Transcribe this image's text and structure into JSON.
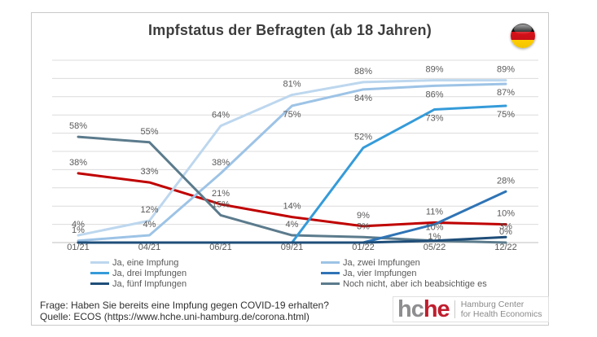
{
  "chart_data": {
    "type": "line",
    "title": "Impfstatus der Befragten (ab 18 Jahren)",
    "categories": [
      "01/21",
      "04/21",
      "06/21",
      "09/21",
      "01/22",
      "05/22",
      "12/22"
    ],
    "xlabel": "",
    "ylabel": "",
    "ylim": [
      0,
      100
    ],
    "grid_step": 10,
    "grid": "horizontal gridlines every 10%, no y-axis tick labels",
    "legend_position": "below chart, two columns",
    "series": [
      {
        "key": "red",
        "legend_label": null,
        "color": "#c00000",
        "values": [
          38,
          33,
          21,
          14,
          9,
          11,
          10
        ],
        "labels": [
          "38%",
          "33%",
          "21%",
          "14%",
          "9%",
          "11%",
          "10%"
        ],
        "label_pos": [
          "a",
          "a",
          "a",
          "a",
          "a",
          "a",
          "a"
        ],
        "label_dy": [
          null,
          null,
          null,
          null,
          null,
          null,
          null
        ]
      },
      {
        "key": "eine",
        "legend_label": "Ja, eine Impfung",
        "color": "#bdd7ee",
        "values": [
          4,
          12,
          64,
          81,
          88,
          89,
          89
        ],
        "labels": [
          "4%",
          "12%",
          "64%",
          "81%",
          "88%",
          "89%",
          "89%"
        ],
        "label_pos": [
          "a",
          "a",
          "a",
          "a",
          "a",
          "a",
          "a"
        ],
        "label_dy": [
          null,
          null,
          null,
          null,
          null,
          null,
          null
        ]
      },
      {
        "key": "zwei",
        "legend_label": "Ja, zwei Impfungen",
        "color": "#9dc3e6",
        "values": [
          1,
          4,
          38,
          75,
          84,
          86,
          87
        ],
        "labels": [
          "1%",
          "4%",
          "38%",
          "75%",
          "84%",
          "86%",
          "87%"
        ],
        "label_pos": [
          "a",
          "a",
          "a",
          "b",
          "b",
          "b",
          "b"
        ],
        "label_dy": [
          null,
          null,
          null,
          null,
          null,
          null,
          null
        ]
      },
      {
        "key": "nochnicht",
        "legend_label": "Noch nicht, aber ich beabsichtige es",
        "color": "#5b7b8c",
        "values": [
          58,
          55,
          15,
          4,
          3,
          1,
          0
        ],
        "labels": [
          "58%",
          "55%",
          "15%",
          "4%",
          "3%",
          "1%",
          "0%"
        ],
        "label_pos": [
          "a",
          "a",
          "a",
          "a",
          "a",
          "a",
          "a"
        ],
        "label_dy": [
          null,
          null,
          null,
          null,
          null,
          -2,
          null
        ]
      },
      {
        "key": "drei",
        "legend_label": "Ja, drei Impfungen",
        "color": "#359bd9",
        "values": [
          0,
          0,
          0,
          0,
          52,
          73,
          75
        ],
        "labels": [
          "",
          "",
          "",
          "",
          "52%",
          "73%",
          "75%"
        ],
        "label_pos": [
          "a",
          "a",
          "a",
          "a",
          "a",
          "b",
          "b"
        ],
        "label_dy": [
          null,
          null,
          null,
          null,
          null,
          null,
          null
        ]
      },
      {
        "key": "vier",
        "legend_label": "Ja, vier Impfungen",
        "color": "#2f74b5",
        "values": [
          0,
          0,
          0,
          0,
          0,
          10,
          28
        ],
        "labels": [
          "",
          "",
          "",
          "",
          "",
          "10%",
          "28%"
        ],
        "label_pos": [
          "a",
          "a",
          "a",
          "a",
          "a",
          "b",
          "a"
        ],
        "label_dy": [
          null,
          null,
          null,
          null,
          null,
          7,
          null
        ]
      },
      {
        "key": "fuenf",
        "legend_label": "Ja, fünf Impfungen",
        "color": "#1f4e79",
        "values": [
          0,
          0,
          0,
          0,
          0,
          1,
          3
        ],
        "labels": [
          "",
          "",
          "",
          "",
          "",
          "",
          "3%"
        ],
        "label_pos": [
          "a",
          "a",
          "a",
          "a",
          "a",
          "a",
          "a"
        ],
        "label_dy": [
          null,
          null,
          null,
          null,
          null,
          null,
          null
        ]
      }
    ],
    "legend_columns": [
      [
        "eine",
        "drei",
        "fuenf"
      ],
      [
        "zwei",
        "vier",
        "nochnicht"
      ]
    ]
  },
  "flag": {
    "name": "german-flag",
    "colors": [
      "#0d0d0d",
      "#d8121a",
      "#ffce00"
    ]
  },
  "footer": {
    "question": "Frage: Haben Sie bereits eine Impfung gegen COVID-19 erhalten?",
    "source": "Quelle: ECOS (https://www.hche.uni-hamburg.de/corona.html)"
  },
  "logo": {
    "gray": "hc",
    "red": "he",
    "line1": "Hamburg Center",
    "line2": "for Health Economics"
  }
}
